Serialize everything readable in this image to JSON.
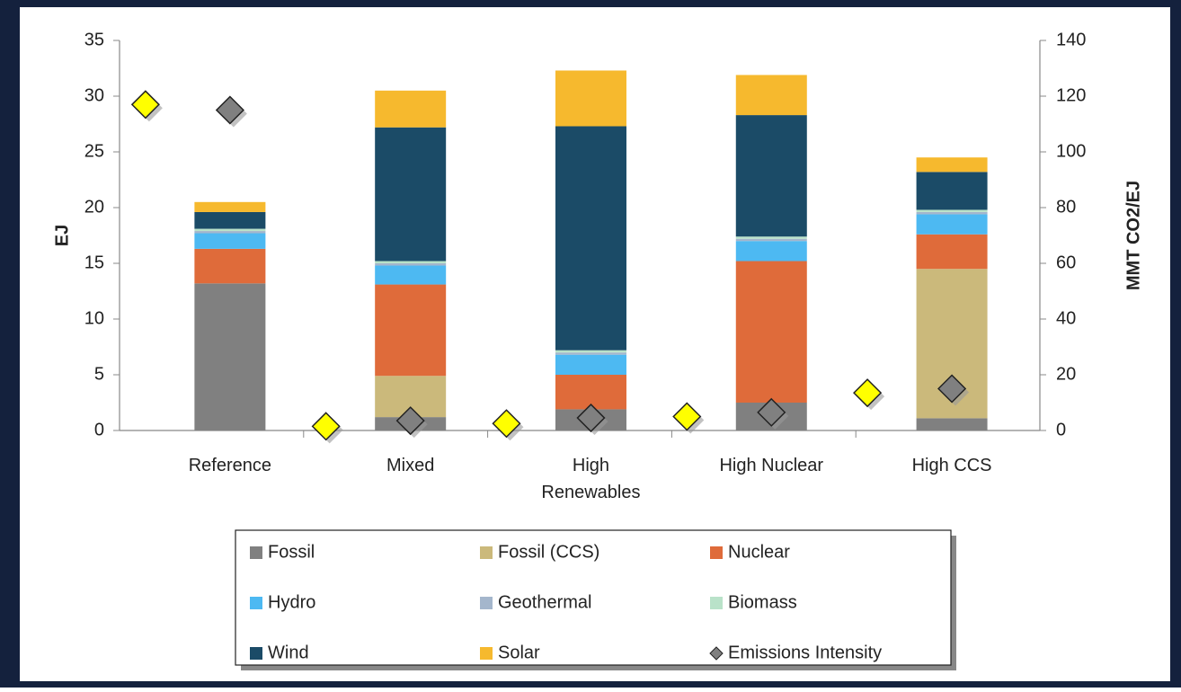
{
  "chart_data": {
    "type": "bar",
    "stacked": true,
    "categories": [
      "Reference",
      "Mixed",
      "High Renewables",
      "High Nuclear",
      "High CCS"
    ],
    "y_label": "EJ",
    "y2_label": "MMT CO2/EJ",
    "ylim": [
      0,
      35
    ],
    "yticks": [
      0,
      5,
      10,
      15,
      20,
      25,
      30,
      35
    ],
    "y2lim": [
      0,
      140
    ],
    "y2ticks": [
      0,
      20,
      40,
      60,
      80,
      100,
      120,
      140
    ],
    "grid": false,
    "legend": "bottom",
    "series": [
      {
        "name": "Fossil",
        "color": "#808080",
        "values": [
          13.2,
          1.2,
          1.9,
          2.5,
          1.1
        ]
      },
      {
        "name": "Fossil (CCS)",
        "color": "#cbb97b",
        "values": [
          0,
          3.7,
          0,
          0,
          13.4
        ]
      },
      {
        "name": "Nuclear",
        "color": "#df6b3a",
        "values": [
          3.1,
          8.2,
          3.1,
          12.7,
          3.1
        ]
      },
      {
        "name": "Hydro",
        "color": "#4db9f2",
        "values": [
          1.4,
          1.7,
          1.8,
          1.8,
          1.8
        ]
      },
      {
        "name": "Geothermal",
        "color": "#a4b6cc",
        "values": [
          0.2,
          0.2,
          0.2,
          0.2,
          0.2
        ]
      },
      {
        "name": "Biomass",
        "color": "#b9e2c9",
        "values": [
          0.2,
          0.2,
          0.2,
          0.2,
          0.2
        ]
      },
      {
        "name": "Wind",
        "color": "#1b4b67",
        "values": [
          1.5,
          12.0,
          20.1,
          10.9,
          3.4
        ]
      },
      {
        "name": "Solar",
        "color": "#f6b92e",
        "values": [
          0.9,
          3.3,
          5.0,
          3.6,
          1.3
        ]
      },
      {
        "name": "Emissions Intensity",
        "color": "#808080",
        "marker": "diamond",
        "axis": "y2",
        "values": [
          115,
          3.5,
          4.5,
          6.5,
          15
        ]
      },
      {
        "color": "#ffff00",
        "marker": "diamond",
        "axis": "y2",
        "offset": "left",
        "values": [
          117,
          1.5,
          2.5,
          5,
          13.5
        ]
      }
    ]
  }
}
